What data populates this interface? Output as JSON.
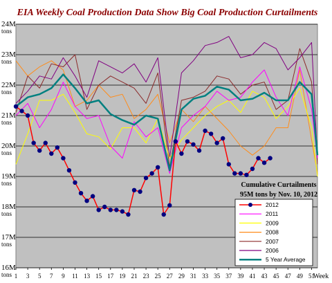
{
  "chart_data": {
    "type": "line",
    "title": "EIA Weekly Coal Production Data Show Big Coal Production Curtailments",
    "xlabel": "Week",
    "ylabel": "",
    "y_unit": "tons",
    "xlim": [
      1,
      52
    ],
    "ylim": [
      16,
      24
    ],
    "x_ticks": [
      1,
      3,
      5,
      7,
      9,
      11,
      13,
      15,
      17,
      19,
      21,
      23,
      25,
      27,
      29,
      31,
      33,
      35,
      37,
      39,
      41,
      43,
      45,
      47,
      49,
      51
    ],
    "y_ticks": [
      "16M",
      "17M",
      "18M",
      "19M",
      "20M",
      "21M",
      "22M",
      "23M",
      "24M"
    ],
    "grid": "horizontal",
    "legend_position": "bottom-right",
    "annotation": [
      "Cumulative Curtailments",
      "95M tons by Nov. 10, 2012"
    ],
    "colors": {
      "2012": "#ff0000",
      "2012_marker": "#000080",
      "2011": "#ff00ff",
      "2009": "#ffff00",
      "2008": "#ff8c1a",
      "2007": "#8b2a2a",
      "2006": "#800080",
      "5 Year Average": "#008080",
      "plot_bg": "#c0c0c0"
    },
    "series": [
      {
        "name": "2012",
        "x": [
          1,
          2,
          3,
          4,
          5,
          6,
          7,
          8,
          9,
          10,
          11,
          12,
          13,
          14,
          15,
          16,
          17,
          18,
          19,
          20,
          21,
          22,
          23,
          24,
          25,
          26,
          27,
          28,
          29,
          30,
          31,
          32,
          33,
          34,
          35,
          36,
          37,
          38,
          39,
          40,
          41,
          42,
          43,
          44,
          45
        ],
        "values": [
          21.3,
          21.15,
          21.0,
          20.1,
          19.85,
          20.1,
          19.75,
          19.95,
          19.6,
          19.2,
          18.8,
          18.45,
          18.2,
          18.35,
          17.9,
          18.0,
          17.9,
          17.9,
          17.85,
          17.75,
          18.55,
          18.5,
          18.95,
          19.1,
          19.3,
          17.75,
          18.05,
          20.15,
          19.75,
          20.15,
          20.05,
          19.85,
          20.5,
          20.4,
          20.1,
          20.25,
          19.4,
          19.1,
          19.1,
          19.05,
          19.25,
          19.6,
          19.45,
          19.6,
          null
        ]
      },
      {
        "name": "2011",
        "x": [
          1,
          3,
          5,
          7,
          9,
          11,
          13,
          15,
          17,
          19,
          21,
          23,
          25,
          27,
          29,
          31,
          33,
          35,
          37,
          39,
          41,
          43,
          45,
          47,
          49,
          51,
          52
        ],
        "values": [
          21.0,
          21.4,
          20.6,
          21.2,
          22.1,
          21.3,
          20.9,
          21.0,
          20.0,
          19.6,
          20.8,
          20.3,
          20.6,
          19.1,
          20.6,
          21.0,
          21.3,
          21.8,
          21.5,
          21.6,
          22.1,
          22.5,
          21.6,
          21.0,
          22.6,
          21.2,
          19.6
        ]
      },
      {
        "name": "2009",
        "x": [
          1,
          3,
          5,
          7,
          9,
          11,
          13,
          15,
          17,
          19,
          21,
          23,
          25,
          27,
          29,
          31,
          33,
          35,
          37,
          39,
          41,
          43,
          45,
          47,
          49,
          51,
          52
        ],
        "values": [
          19.4,
          20.4,
          21.5,
          21.5,
          21.7,
          21.1,
          20.4,
          20.3,
          19.9,
          20.6,
          20.6,
          20.1,
          20.9,
          19.6,
          20.2,
          20.6,
          21.0,
          21.3,
          21.5,
          21.1,
          21.8,
          21.6,
          20.9,
          21.3,
          21.9,
          20.6,
          19.0
        ]
      },
      {
        "name": "2008",
        "x": [
          1,
          3,
          5,
          7,
          9,
          11,
          13,
          15,
          17,
          19,
          21,
          23,
          25,
          27,
          29,
          31,
          33,
          35,
          37,
          39,
          41,
          43,
          45,
          47,
          49,
          51,
          52
        ],
        "values": [
          22.8,
          22.3,
          22.6,
          22.8,
          22.5,
          21.3,
          21.5,
          22.0,
          21.6,
          21.7,
          20.9,
          21.2,
          21.7,
          20.1,
          21.2,
          20.8,
          21.3,
          20.9,
          20.5,
          20.0,
          19.7,
          20.0,
          20.6,
          20.6,
          22.5,
          20.2,
          19.1
        ]
      },
      {
        "name": "2007",
        "x": [
          1,
          3,
          5,
          7,
          9,
          11,
          13,
          15,
          17,
          19,
          21,
          23,
          25,
          27,
          29,
          31,
          33,
          35,
          37,
          39,
          41,
          43,
          45,
          47,
          49,
          51,
          52
        ],
        "values": [
          21.1,
          22.3,
          21.9,
          22.7,
          22.6,
          23.0,
          21.2,
          22.0,
          22.3,
          22.1,
          21.9,
          21.4,
          22.4,
          19.3,
          21.5,
          21.6,
          21.8,
          22.3,
          22.2,
          21.7,
          22.0,
          22.1,
          21.2,
          21.5,
          23.2,
          22.1,
          19.4
        ]
      },
      {
        "name": "2006",
        "x": [
          1,
          3,
          5,
          7,
          9,
          11,
          13,
          15,
          17,
          19,
          21,
          23,
          25,
          27,
          29,
          31,
          33,
          35,
          37,
          39,
          41,
          43,
          45,
          47,
          49,
          51,
          52
        ],
        "values": [
          21.4,
          21.8,
          22.3,
          22.2,
          22.9,
          22.3,
          21.6,
          22.8,
          22.6,
          22.4,
          22.7,
          22.1,
          22.9,
          19.6,
          22.4,
          22.8,
          23.3,
          23.4,
          23.6,
          22.9,
          23.0,
          23.4,
          23.2,
          22.5,
          22.9,
          23.4,
          19.6
        ]
      },
      {
        "name": "5 Year Average",
        "x": [
          1,
          3,
          5,
          7,
          9,
          11,
          13,
          15,
          17,
          19,
          21,
          23,
          25,
          27,
          29,
          31,
          33,
          35,
          37,
          39,
          41,
          43,
          45,
          47,
          49,
          51,
          52
        ],
        "values": [
          21.3,
          21.6,
          21.7,
          21.9,
          22.35,
          21.9,
          21.4,
          21.5,
          21.05,
          20.85,
          20.7,
          21.0,
          20.9,
          19.2,
          21.2,
          21.55,
          21.65,
          21.95,
          21.85,
          21.5,
          21.55,
          21.75,
          21.5,
          21.5,
          22.1,
          21.7,
          19.7
        ]
      }
    ]
  }
}
